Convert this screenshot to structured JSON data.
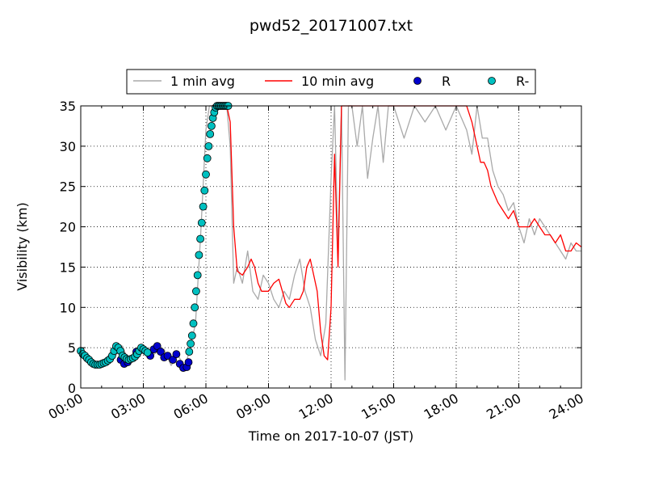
{
  "chart_data": {
    "type": "line",
    "title": "pwd52_20171007.txt",
    "xlabel": "Time on 2017-10-07 (JST)",
    "ylabel": "Visibility (km)",
    "xlim": [
      "00:00",
      "24:00"
    ],
    "ylim": [
      0,
      35
    ],
    "x_ticks": [
      "00:00",
      "03:00",
      "06:00",
      "09:00",
      "12:00",
      "15:00",
      "18:00",
      "21:00",
      "24:00"
    ],
    "y_ticks": [
      "0",
      "5",
      "10",
      "15",
      "20",
      "25",
      "30",
      "35"
    ],
    "grid": true,
    "legend_position": "top-center",
    "series": [
      {
        "name": "1 min avg",
        "style": "line",
        "color": "#a9a9a9",
        "x": [
          "00:00",
          "00:30",
          "01:00",
          "01:20",
          "01:40",
          "02:00",
          "02:20",
          "02:40",
          "03:00",
          "03:20",
          "03:40",
          "04:00",
          "04:20",
          "04:40",
          "05:00",
          "05:15",
          "05:30",
          "05:45",
          "06:00",
          "06:10",
          "06:20",
          "06:30",
          "06:40",
          "06:50",
          "07:00",
          "07:10",
          "07:20",
          "07:30",
          "07:45",
          "08:00",
          "08:15",
          "08:30",
          "08:45",
          "09:00",
          "09:15",
          "09:30",
          "09:45",
          "10:00",
          "10:15",
          "10:30",
          "10:45",
          "11:00",
          "11:15",
          "11:30",
          "11:45",
          "12:00",
          "12:10",
          "12:20",
          "12:30",
          "12:40",
          "12:50",
          "13:00",
          "13:15",
          "13:30",
          "13:45",
          "14:00",
          "14:15",
          "14:30",
          "14:45",
          "15:00",
          "15:30",
          "16:00",
          "16:30",
          "17:00",
          "17:30",
          "18:00",
          "18:30",
          "18:45",
          "19:00",
          "19:15",
          "19:30",
          "19:45",
          "20:00",
          "20:15",
          "20:30",
          "20:45",
          "21:00",
          "21:15",
          "21:30",
          "21:45",
          "22:00",
          "22:15",
          "22:30",
          "22:45",
          "23:00",
          "23:15",
          "23:30",
          "23:45",
          "24:00"
        ],
        "y": [
          4.5,
          3.5,
          2.9,
          3.2,
          4.0,
          5.2,
          3.0,
          4.6,
          4.4,
          3.8,
          4.5,
          4.8,
          2.8,
          4.0,
          2.6,
          5.0,
          8.0,
          19.0,
          32.0,
          35,
          35,
          35,
          35,
          35,
          35,
          30,
          13,
          15,
          13,
          17,
          12,
          11,
          14,
          13,
          11,
          10,
          12,
          11,
          14,
          16,
          12,
          10,
          6,
          4,
          8,
          26,
          35,
          17,
          35,
          1,
          35,
          35,
          30,
          35,
          26,
          31,
          35,
          28,
          35,
          35,
          31,
          35,
          33,
          35,
          32,
          35,
          32,
          29,
          35,
          31,
          31,
          27,
          25,
          24,
          22,
          23,
          20,
          18,
          21,
          19,
          21,
          20,
          19,
          18,
          17,
          16,
          18,
          17,
          17
        ]
      },
      {
        "name": "10 min avg",
        "style": "line",
        "color": "#ff0000",
        "x": [
          "06:15",
          "06:30",
          "06:45",
          "07:00",
          "07:10",
          "07:20",
          "07:30",
          "07:45",
          "08:00",
          "08:10",
          "08:20",
          "08:30",
          "08:40",
          "08:50",
          "09:00",
          "09:15",
          "09:30",
          "09:40",
          "09:50",
          "10:00",
          "10:15",
          "10:30",
          "10:40",
          "10:50",
          "11:00",
          "11:10",
          "11:20",
          "11:30",
          "11:40",
          "11:50",
          "12:00",
          "12:10",
          "12:20",
          "12:30",
          "12:40",
          "12:50",
          "13:00",
          "13:15",
          "13:30",
          "18:30",
          "18:45",
          "19:00",
          "19:10",
          "19:20",
          "19:30",
          "19:40",
          "19:50",
          "20:00",
          "20:15",
          "20:30",
          "20:45",
          "21:00",
          "21:15",
          "21:30",
          "21:45",
          "22:00",
          "22:15",
          "22:30",
          "22:45",
          "23:00",
          "23:15",
          "23:30",
          "23:45",
          "24:00"
        ],
        "y": [
          35,
          35,
          35,
          35,
          33,
          20,
          14.5,
          14,
          15,
          16,
          15,
          13,
          12,
          12,
          12,
          13,
          13.5,
          12,
          10.5,
          10,
          11,
          11,
          12,
          15,
          16,
          14,
          12,
          7,
          4,
          3.5,
          10,
          29,
          15,
          35,
          35,
          35,
          35,
          35,
          35,
          35,
          33,
          30,
          28,
          28,
          27,
          25,
          24,
          23,
          22,
          21,
          22,
          20,
          20,
          20,
          21,
          20,
          19,
          19,
          18,
          19,
          17,
          17,
          18,
          17.5
        ]
      },
      {
        "name": "R",
        "style": "marker",
        "color": "#0000cd",
        "x": [
          "01:55",
          "02:05",
          "02:15",
          "02:40",
          "03:20",
          "03:30",
          "03:40",
          "03:50",
          "04:00",
          "04:10",
          "04:25",
          "04:35",
          "04:45",
          "04:55",
          "05:05",
          "05:10"
        ],
        "y": [
          3.5,
          3.0,
          3.2,
          4.5,
          4.0,
          4.8,
          5.2,
          4.5,
          3.8,
          4.0,
          3.5,
          4.2,
          3.0,
          2.5,
          2.6,
          3.2
        ]
      },
      {
        "name": "R-",
        "style": "marker",
        "color": "#00c0c0",
        "x": [
          "00:00",
          "00:06",
          "00:12",
          "00:18",
          "00:24",
          "00:30",
          "00:36",
          "00:42",
          "00:48",
          "00:54",
          "01:00",
          "01:06",
          "01:12",
          "01:18",
          "01:24",
          "01:30",
          "01:36",
          "01:42",
          "01:48",
          "01:54",
          "02:00",
          "02:06",
          "02:12",
          "02:18",
          "02:24",
          "02:30",
          "02:36",
          "02:42",
          "02:48",
          "02:54",
          "03:00",
          "03:06",
          "03:12",
          "05:12",
          "05:16",
          "05:20",
          "05:24",
          "05:28",
          "05:32",
          "05:36",
          "05:40",
          "05:44",
          "05:48",
          "05:52",
          "05:56",
          "06:00",
          "06:04",
          "06:08",
          "06:12",
          "06:16",
          "06:20",
          "06:24",
          "06:28",
          "06:32",
          "06:36",
          "06:40",
          "06:44",
          "06:48",
          "06:52",
          "06:56",
          "07:00",
          "07:04"
        ],
        "y": [
          4.6,
          4.2,
          4.0,
          3.7,
          3.5,
          3.2,
          3.0,
          2.9,
          2.9,
          2.9,
          3.0,
          3.1,
          3.2,
          3.4,
          3.6,
          4.0,
          4.6,
          5.2,
          5.0,
          4.6,
          4.0,
          3.8,
          3.6,
          3.5,
          3.6,
          3.7,
          3.9,
          4.2,
          4.6,
          5.0,
          4.8,
          4.6,
          4.4,
          4.5,
          5.5,
          6.5,
          8.0,
          10.0,
          12.0,
          14.0,
          16.5,
          18.5,
          20.5,
          22.5,
          24.5,
          26.5,
          28.5,
          30.0,
          31.5,
          32.5,
          33.5,
          34.2,
          34.8,
          35,
          35,
          35,
          35,
          35,
          35,
          35,
          35,
          35
        ]
      }
    ]
  }
}
